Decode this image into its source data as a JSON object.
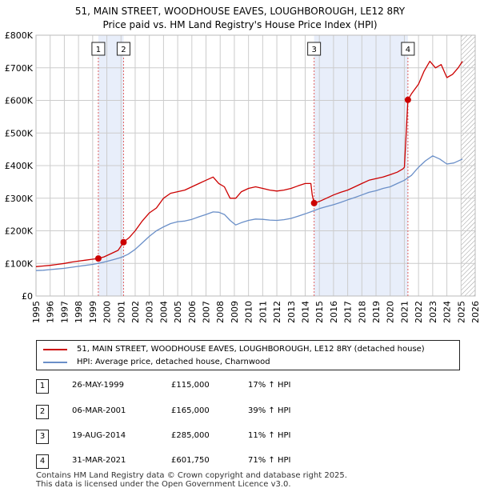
{
  "title_line1": "51, MAIN STREET, WOODHOUSE EAVES, LOUGHBOROUGH, LE12 8RY",
  "title_line2": "Price paid vs. HM Land Registry's House Price Index (HPI)",
  "colors": {
    "property": "#cc0000",
    "hpi": "#6a8fc8",
    "shade": "#e8eefa",
    "vline": "#e06060",
    "grid": "#cccccc"
  },
  "chart_data": {
    "type": "line",
    "x_range": [
      1995,
      2026
    ],
    "ylim": [
      0,
      800000
    ],
    "y_ticks": [
      {
        "value": 0,
        "label": "£0"
      },
      {
        "value": 100000,
        "label": "£100K"
      },
      {
        "value": 200000,
        "label": "£200K"
      },
      {
        "value": 300000,
        "label": "£300K"
      },
      {
        "value": 400000,
        "label": "£400K"
      },
      {
        "value": 500000,
        "label": "£500K"
      },
      {
        "value": 600000,
        "label": "£600K"
      },
      {
        "value": 700000,
        "label": "£700K"
      },
      {
        "value": 800000,
        "label": "£800K"
      }
    ],
    "x_ticks": [
      "1995",
      "1996",
      "1997",
      "1998",
      "1999",
      "2000",
      "2001",
      "2002",
      "2003",
      "2004",
      "2005",
      "2006",
      "2007",
      "2008",
      "2009",
      "2010",
      "2011",
      "2012",
      "2013",
      "2014",
      "2015",
      "2016",
      "2017",
      "2018",
      "2019",
      "2020",
      "2021",
      "2022",
      "2023",
      "2024",
      "2025",
      "2026"
    ],
    "series": [
      {
        "name": "51, MAIN STREET, WOODHOUSE EAVES, LOUGHBOROUGH, LE12 8RY (detached house)",
        "x": [
          1995.0,
          1995.5,
          1996.0,
          1996.5,
          1997.0,
          1997.5,
          1998.0,
          1998.5,
          1999.0,
          1999.4,
          1999.8,
          2000.3,
          2000.8,
          2001.18,
          2001.6,
          2002.0,
          2002.5,
          2003.0,
          2003.5,
          2004.0,
          2004.5,
          2005.0,
          2005.5,
          2006.0,
          2006.5,
          2007.0,
          2007.5,
          2007.9,
          2008.3,
          2008.7,
          2009.1,
          2009.5,
          2010.0,
          2010.5,
          2011.0,
          2011.5,
          2012.0,
          2012.5,
          2013.0,
          2013.5,
          2014.0,
          2014.4,
          2014.5,
          2014.63,
          2015.0,
          2015.5,
          2016.0,
          2016.5,
          2017.0,
          2017.5,
          2018.0,
          2018.5,
          2019.0,
          2019.5,
          2020.0,
          2020.5,
          2020.9,
          2021.0,
          2021.25,
          2021.5,
          2022.0,
          2022.4,
          2022.8,
          2023.2,
          2023.6,
          2024.0,
          2024.4,
          2024.8,
          2025.1
        ],
        "values": [
          90000,
          92000,
          94000,
          97000,
          100000,
          104000,
          107000,
          110000,
          113000,
          115000,
          120000,
          130000,
          140000,
          165000,
          180000,
          200000,
          230000,
          255000,
          270000,
          300000,
          315000,
          320000,
          325000,
          335000,
          345000,
          355000,
          365000,
          345000,
          335000,
          300000,
          300000,
          320000,
          330000,
          335000,
          330000,
          325000,
          322000,
          325000,
          330000,
          338000,
          345000,
          345000,
          310000,
          285000,
          290000,
          300000,
          310000,
          318000,
          325000,
          335000,
          345000,
          355000,
          360000,
          365000,
          372000,
          380000,
          390000,
          395000,
          601750,
          620000,
          650000,
          690000,
          720000,
          700000,
          710000,
          670000,
          680000,
          700000,
          720000
        ]
      },
      {
        "name": "HPI: Average price, detached house, Charnwood",
        "x": [
          1995.0,
          1995.5,
          1996.0,
          1996.5,
          1997.0,
          1997.5,
          1998.0,
          1998.5,
          1999.0,
          1999.5,
          2000.0,
          2000.5,
          2001.0,
          2001.5,
          2002.0,
          2002.5,
          2003.0,
          2003.5,
          2004.0,
          2004.5,
          2005.0,
          2005.5,
          2006.0,
          2006.5,
          2007.0,
          2007.5,
          2007.9,
          2008.3,
          2008.7,
          2009.1,
          2009.5,
          2010.0,
          2010.5,
          2011.0,
          2011.5,
          2012.0,
          2012.5,
          2013.0,
          2013.5,
          2014.0,
          2014.5,
          2015.0,
          2015.5,
          2016.0,
          2016.5,
          2017.0,
          2017.5,
          2018.0,
          2018.5,
          2019.0,
          2019.5,
          2020.0,
          2020.5,
          2021.0,
          2021.5,
          2022.0,
          2022.5,
          2023.0,
          2023.5,
          2024.0,
          2024.5,
          2025.1
        ],
        "values": [
          78000,
          79000,
          81000,
          83000,
          85000,
          88000,
          91000,
          94000,
          97000,
          101000,
          106000,
          112000,
          118000,
          128000,
          143000,
          163000,
          183000,
          200000,
          212000,
          222000,
          228000,
          230000,
          235000,
          243000,
          250000,
          258000,
          257000,
          250000,
          232000,
          218000,
          225000,
          232000,
          236000,
          235000,
          233000,
          232000,
          234000,
          238000,
          245000,
          252000,
          260000,
          268000,
          274000,
          280000,
          287000,
          295000,
          302000,
          310000,
          318000,
          323000,
          330000,
          335000,
          345000,
          355000,
          370000,
          395000,
          415000,
          430000,
          420000,
          405000,
          408000,
          420000
        ]
      }
    ],
    "sales": [
      {
        "label": "1",
        "x": 1999.4,
        "value": 115000
      },
      {
        "label": "2",
        "x": 2001.18,
        "value": 165000
      },
      {
        "label": "3",
        "x": 2014.63,
        "value": 285000
      },
      {
        "label": "4",
        "x": 2021.25,
        "value": 601750
      }
    ],
    "shaded_periods": [
      [
        1999.4,
        2001.18
      ],
      [
        2014.63,
        2021.25
      ]
    ],
    "hatched_from": 2025.0
  },
  "legend": {
    "property_label": "51, MAIN STREET, WOODHOUSE EAVES, LOUGHBOROUGH, LE12 8RY (detached house)",
    "hpi_label": "HPI: Average price, detached house, Charnwood"
  },
  "sales_table": [
    {
      "num": "1",
      "date": "26-MAY-1999",
      "price": "£115,000",
      "hpi": "17% ↑ HPI"
    },
    {
      "num": "2",
      "date": "06-MAR-2001",
      "price": "£165,000",
      "hpi": "39% ↑ HPI"
    },
    {
      "num": "3",
      "date": "19-AUG-2014",
      "price": "£285,000",
      "hpi": "11% ↑ HPI"
    },
    {
      "num": "4",
      "date": "31-MAR-2021",
      "price": "£601,750",
      "hpi": "71% ↑ HPI"
    }
  ],
  "footer_line1": "Contains HM Land Registry data © Crown copyright and database right 2025.",
  "footer_line2": "This data is licensed under the Open Government Licence v3.0."
}
